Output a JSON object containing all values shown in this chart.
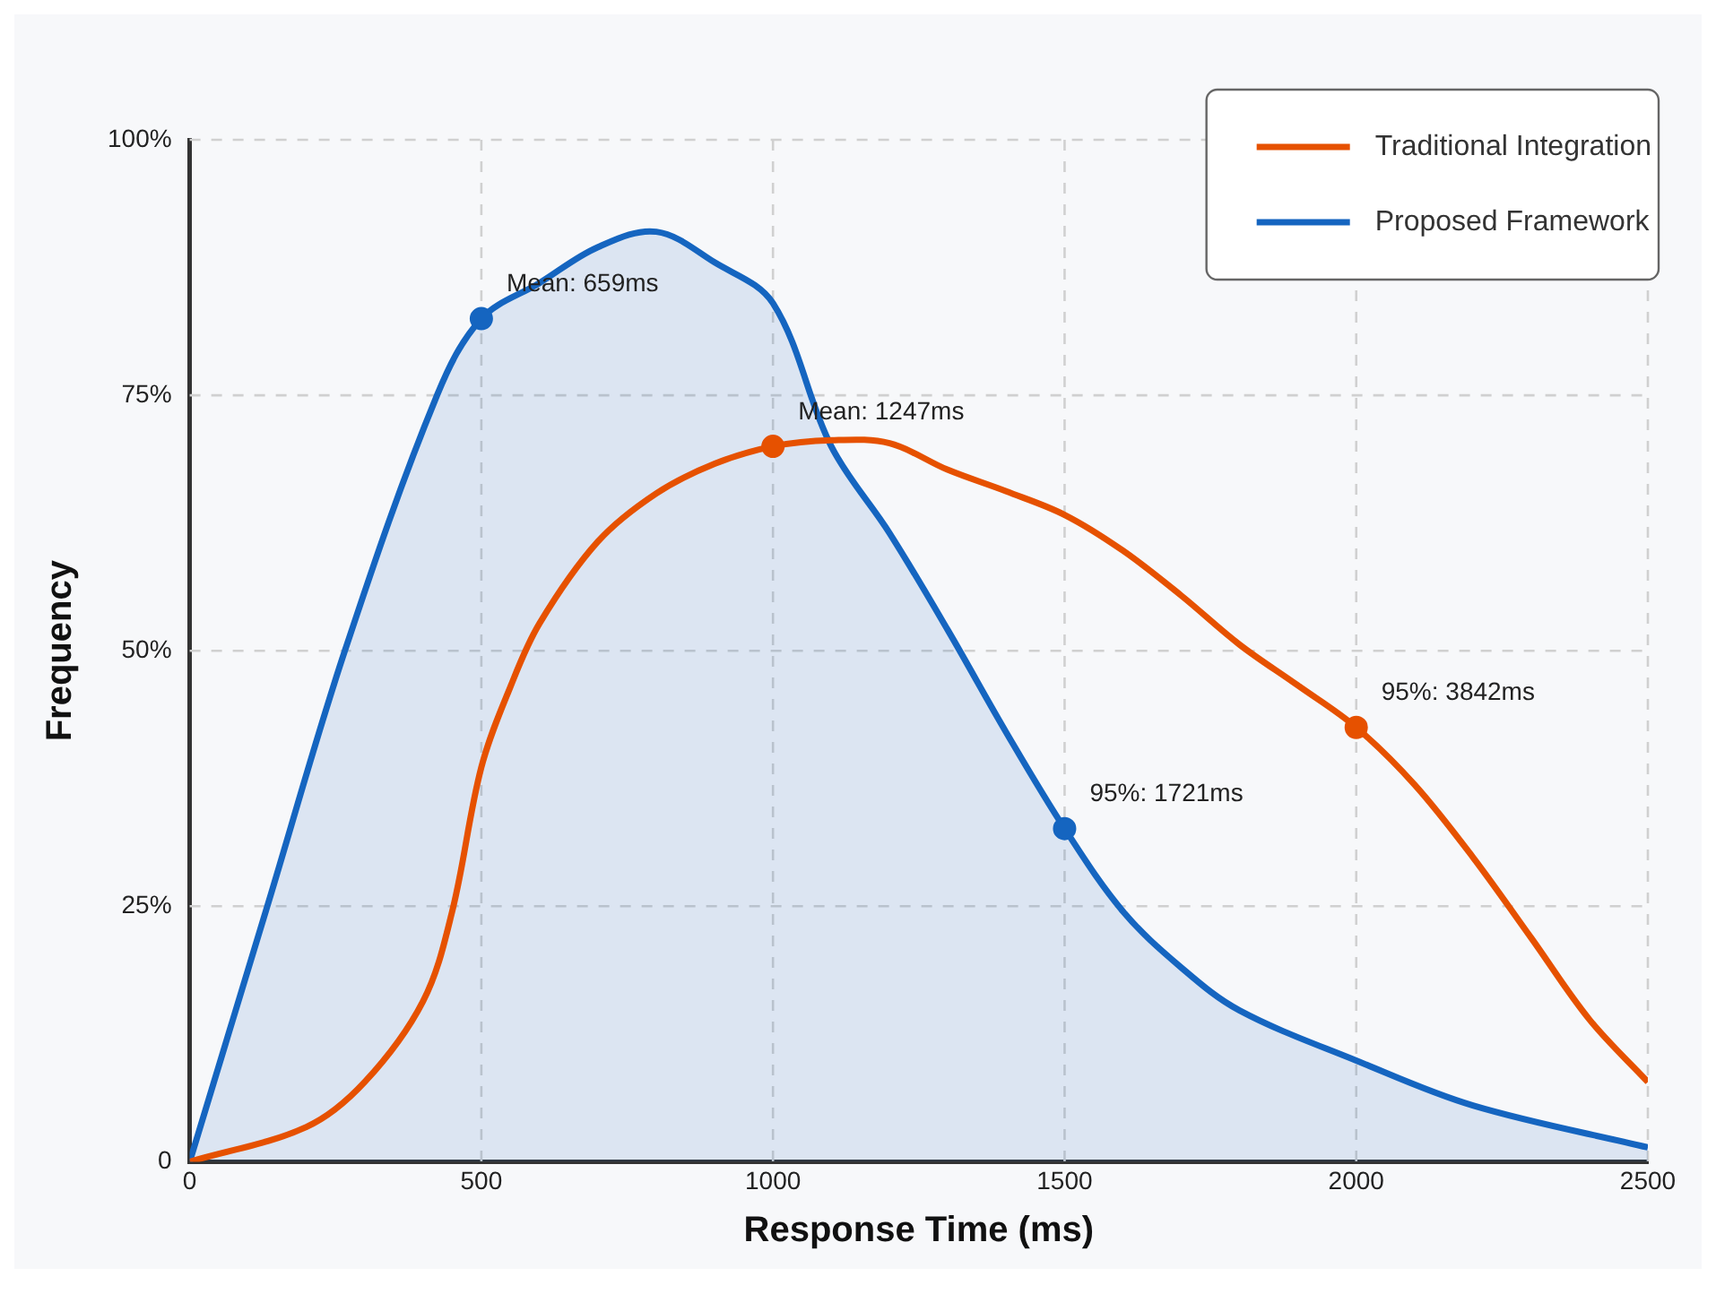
{
  "chart_data": {
    "type": "line",
    "xlabel": "Response Time (ms)",
    "ylabel": "Frequency",
    "xlim": [
      0,
      2500
    ],
    "xticks": [
      0,
      500,
      1000,
      1500,
      2000,
      2500
    ],
    "ylim": [
      0,
      100
    ],
    "yticks": [
      {
        "value": 0,
        "label": "0"
      },
      {
        "value": 25,
        "label": "25%"
      },
      {
        "value": 50,
        "label": "50%"
      },
      {
        "value": 75,
        "label": "75%"
      },
      {
        "value": 100,
        "label": "100%"
      }
    ],
    "grid": true,
    "legend": "top right",
    "marker": "none",
    "line_style": "solid",
    "series": [
      {
        "name": "Traditional Integration",
        "color": "#e65100",
        "x": [
          0,
          200,
          300,
          400,
          450,
          500,
          550,
          600,
          700,
          800,
          900,
          1000,
          1100,
          1200,
          1300,
          1400,
          1500,
          1600,
          1700,
          1800,
          1900,
          2000,
          2100,
          2200,
          2300,
          2400,
          2500
        ],
        "values": [
          0,
          3.4,
          7.8,
          15.7,
          24.5,
          38.6,
          46.5,
          52.7,
          60.7,
          65.4,
          68.3,
          70,
          70.6,
          70.3,
          67.7,
          65.6,
          63.3,
          59.8,
          55.4,
          50.6,
          46.6,
          42.5,
          36.9,
          29.8,
          21.9,
          13.9,
          7.8
        ]
      },
      {
        "name": "Proposed Framework",
        "type": "area",
        "color": "#1565c0",
        "x": [
          0,
          133,
          266,
          424,
          500,
          600,
          700,
          800,
          900,
          1000,
          1100,
          1200,
          1300,
          1400,
          1500,
          1600,
          1700,
          1800,
          2000,
          2200,
          2500
        ],
        "values": [
          0,
          25,
          50,
          75,
          82.5,
          86,
          89.5,
          91,
          88,
          84,
          70,
          61.5,
          52,
          42,
          32.6,
          24.5,
          19,
          14.8,
          9.9,
          5.5,
          1.4
        ]
      },
      {
        "type": "scatter",
        "marker": "circle",
        "color": "#1565c0",
        "x": [
          500,
          1500
        ],
        "values": [
          82.5,
          32.6
        ]
      },
      {
        "type": "scatter",
        "marker": "circle",
        "color": "#e65100",
        "x": [
          1000,
          2000
        ],
        "values": [
          70,
          42.5
        ]
      }
    ],
    "annotations": [
      {
        "text": "Mean: 659ms",
        "x": 500,
        "y": 82.5
      },
      {
        "text": "Mean: 1247ms",
        "x": 1000,
        "y": 70
      },
      {
        "text": "95%: 1721ms",
        "x": 1500,
        "y": 32.6
      },
      {
        "text": "95%: 3842ms",
        "x": 2000,
        "y": 42.5
      }
    ]
  }
}
